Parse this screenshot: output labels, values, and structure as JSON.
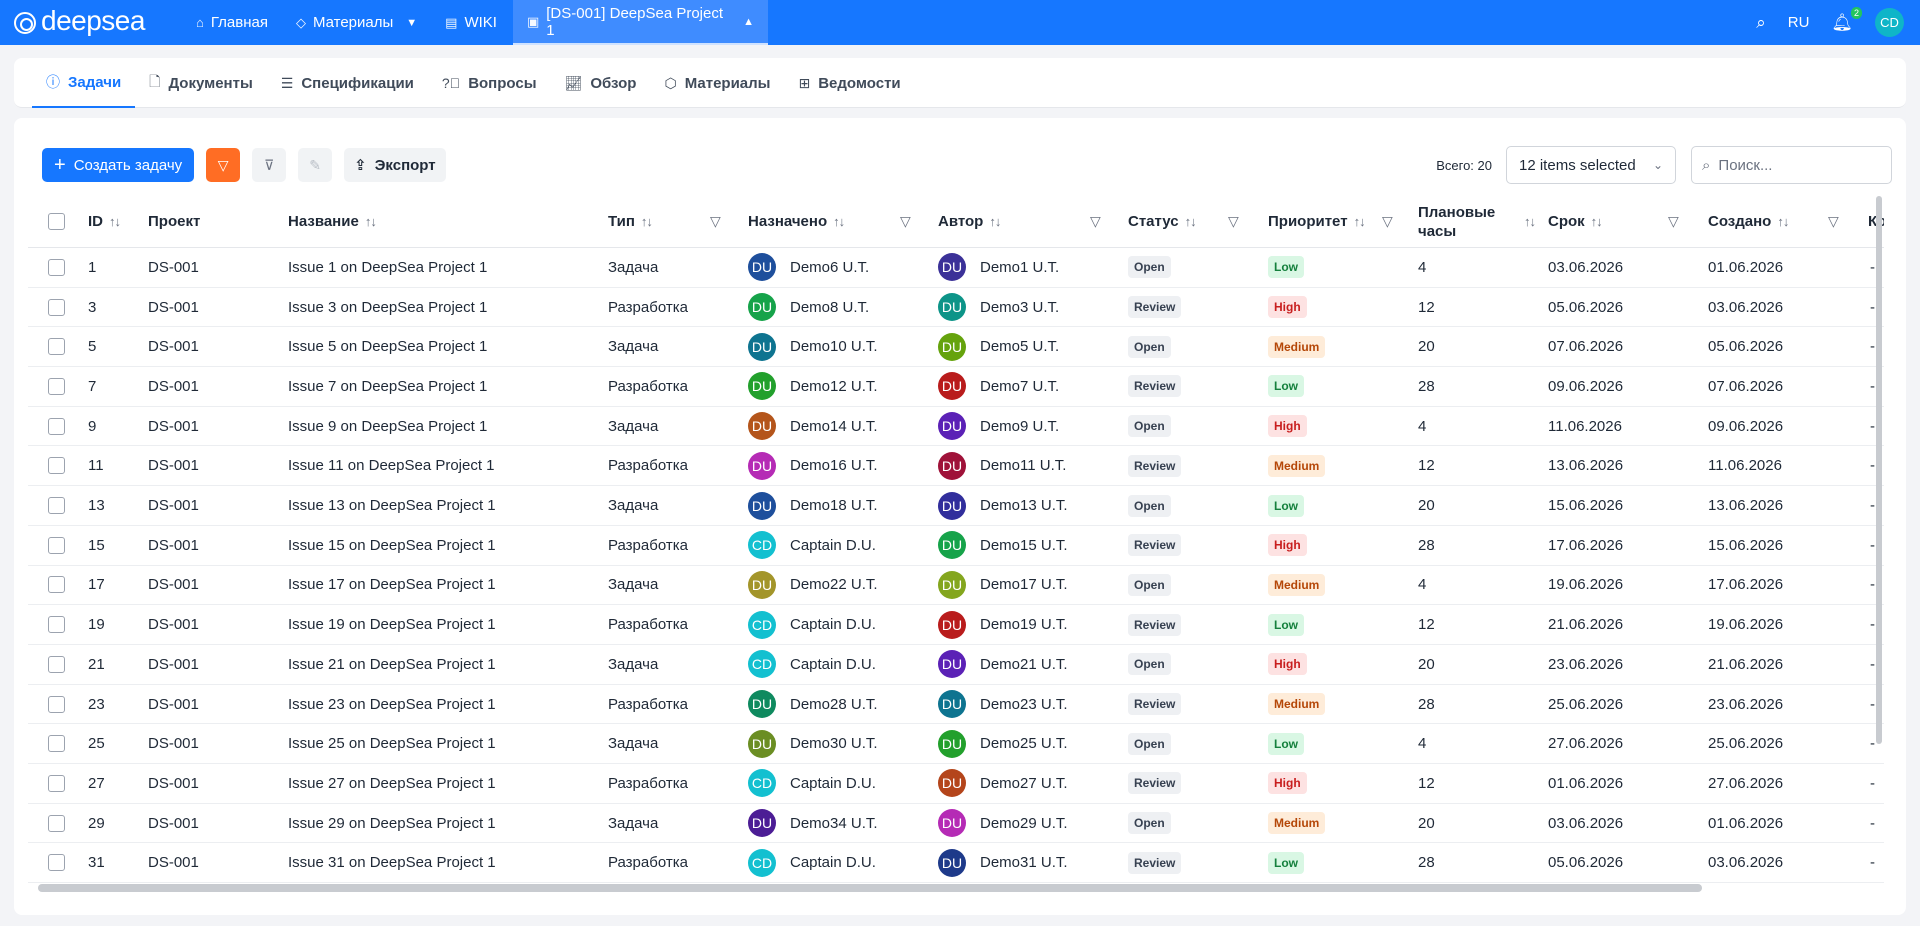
{
  "topbar": {
    "logo": "deepsea",
    "nav": [
      {
        "label": "Главная",
        "icon": "home-icon"
      },
      {
        "label": "Материалы",
        "icon": "tag-icon"
      },
      {
        "label": "WIKI",
        "icon": "book-icon"
      },
      {
        "label": "[DS-001] DeepSea Project 1",
        "icon": "project-icon"
      }
    ],
    "lang": "RU",
    "notifications": "2",
    "user_initials": "CD"
  },
  "tabs": [
    {
      "label": "Задачи",
      "icon": "info-icon",
      "active": true
    },
    {
      "label": "Документы",
      "icon": "document-icon"
    },
    {
      "label": "Спецификации",
      "icon": "list-icon"
    },
    {
      "label": "Вопросы",
      "icon": "question-icon"
    },
    {
      "label": "Обзор",
      "icon": "chart-icon"
    },
    {
      "label": "Материалы",
      "icon": "box-icon"
    },
    {
      "label": "Ведомости",
      "icon": "table-icon"
    }
  ],
  "toolbar": {
    "create_label": "Создать задачу",
    "export_label": "Экспорт",
    "total_label": "Всего: 20",
    "select_value": "12 items selected",
    "search_placeholder": "Поиск..."
  },
  "columns": {
    "id": "ID",
    "project": "Проект",
    "name": "Название",
    "type": "Тип",
    "assignee": "Назначено",
    "author": "Автор",
    "status": "Статус",
    "priority": "Приоритет",
    "hours_line1": "Плановые",
    "hours_line2": "часы",
    "due": "Срок",
    "created": "Создано",
    "extra": "Ко"
  },
  "rows": [
    {
      "id": "1",
      "project": "DS-001",
      "name": "Issue 1 on DeepSea Project 1",
      "type": "Задача",
      "assignee": "Demo6 U.T.",
      "assignee_init": "DU",
      "assignee_color": "#1e4f9c",
      "author": "Demo1 U.T.",
      "author_init": "DU",
      "author_color": "#3b3198",
      "status": "Open",
      "priority": "Low",
      "hours": "4",
      "due": "03.06.2026",
      "created": "01.06.2026",
      "extra": "-"
    },
    {
      "id": "3",
      "project": "DS-001",
      "name": "Issue 3 on DeepSea Project 1",
      "type": "Разработка",
      "assignee": "Demo8 U.T.",
      "assignee_init": "DU",
      "assignee_color": "#16a34a",
      "author": "Demo3 U.T.",
      "author_init": "DU",
      "author_color": "#0d9488",
      "status": "Review",
      "priority": "High",
      "hours": "12",
      "due": "05.06.2026",
      "created": "03.06.2026",
      "extra": "-"
    },
    {
      "id": "5",
      "project": "DS-001",
      "name": "Issue 5 on DeepSea Project 1",
      "type": "Задача",
      "assignee": "Demo10 U.T.",
      "assignee_init": "DU",
      "assignee_color": "#0e7490",
      "author": "Demo5 U.T.",
      "author_init": "DU",
      "author_color": "#65a30d",
      "status": "Open",
      "priority": "Medium",
      "hours": "20",
      "due": "07.06.2026",
      "created": "05.06.2026",
      "extra": "-"
    },
    {
      "id": "7",
      "project": "DS-001",
      "name": "Issue 7 on DeepSea Project 1",
      "type": "Разработка",
      "assignee": "Demo12 U.T.",
      "assignee_init": "DU",
      "assignee_color": "#22a02c",
      "author": "Demo7 U.T.",
      "author_init": "DU",
      "author_color": "#b91c1c",
      "status": "Review",
      "priority": "Low",
      "hours": "28",
      "due": "09.06.2026",
      "created": "07.06.2026",
      "extra": "-"
    },
    {
      "id": "9",
      "project": "DS-001",
      "name": "Issue 9 on DeepSea Project 1",
      "type": "Задача",
      "assignee": "Demo14 U.T.",
      "assignee_init": "DU",
      "assignee_color": "#b4551b",
      "author": "Demo9 U.T.",
      "author_init": "DU",
      "author_color": "#5b21b6",
      "status": "Open",
      "priority": "High",
      "hours": "4",
      "due": "11.06.2026",
      "created": "09.06.2026",
      "extra": "-"
    },
    {
      "id": "11",
      "project": "DS-001",
      "name": "Issue 11 on DeepSea Project 1",
      "type": "Разработка",
      "assignee": "Demo16 U.T.",
      "assignee_init": "DU",
      "assignee_color": "#b52bb5",
      "author": "Demo11 U.T.",
      "author_init": "DU",
      "author_color": "#9f1239",
      "status": "Review",
      "priority": "Medium",
      "hours": "12",
      "due": "13.06.2026",
      "created": "11.06.2026",
      "extra": "-"
    },
    {
      "id": "13",
      "project": "DS-001",
      "name": "Issue 13 on DeepSea Project 1",
      "type": "Задача",
      "assignee": "Demo18 U.T.",
      "assignee_init": "DU",
      "assignee_color": "#1e4f9c",
      "author": "Demo13 U.T.",
      "author_init": "DU",
      "author_color": "#312e9c",
      "status": "Open",
      "priority": "Low",
      "hours": "20",
      "due": "15.06.2026",
      "created": "13.06.2026",
      "extra": "-"
    },
    {
      "id": "15",
      "project": "DS-001",
      "name": "Issue 15 on DeepSea Project 1",
      "type": "Разработка",
      "assignee": "Captain D.U.",
      "assignee_init": "CD",
      "assignee_color": "#13c0d0",
      "author": "Demo15 U.T.",
      "author_init": "DU",
      "author_color": "#16a34a",
      "status": "Review",
      "priority": "High",
      "hours": "28",
      "due": "17.06.2026",
      "created": "15.06.2026",
      "extra": "-"
    },
    {
      "id": "17",
      "project": "DS-001",
      "name": "Issue 17 on DeepSea Project 1",
      "type": "Задача",
      "assignee": "Demo22 U.T.",
      "assignee_init": "DU",
      "assignee_color": "#a3952a",
      "author": "Demo17 U.T.",
      "author_init": "DU",
      "author_color": "#84a61e",
      "status": "Open",
      "priority": "Medium",
      "hours": "4",
      "due": "19.06.2026",
      "created": "17.06.2026",
      "extra": "-"
    },
    {
      "id": "19",
      "project": "DS-001",
      "name": "Issue 19 on DeepSea Project 1",
      "type": "Разработка",
      "assignee": "Captain D.U.",
      "assignee_init": "CD",
      "assignee_color": "#13c0d0",
      "author": "Demo19 U.T.",
      "author_init": "DU",
      "author_color": "#b91c1c",
      "status": "Review",
      "priority": "Low",
      "hours": "12",
      "due": "21.06.2026",
      "created": "19.06.2026",
      "extra": "-"
    },
    {
      "id": "21",
      "project": "DS-001",
      "name": "Issue 21 on DeepSea Project 1",
      "type": "Задача",
      "assignee": "Captain D.U.",
      "assignee_init": "CD",
      "assignee_color": "#13c0d0",
      "author": "Demo21 U.T.",
      "author_init": "DU",
      "author_color": "#5b21b6",
      "status": "Open",
      "priority": "High",
      "hours": "20",
      "due": "23.06.2026",
      "created": "21.06.2026",
      "extra": "-"
    },
    {
      "id": "23",
      "project": "DS-001",
      "name": "Issue 23 on DeepSea Project 1",
      "type": "Разработка",
      "assignee": "Demo28 U.T.",
      "assignee_init": "DU",
      "assignee_color": "#0f8a5f",
      "author": "Demo23 U.T.",
      "author_init": "DU",
      "author_color": "#0e7490",
      "status": "Review",
      "priority": "Medium",
      "hours": "28",
      "due": "25.06.2026",
      "created": "23.06.2026",
      "extra": "-"
    },
    {
      "id": "25",
      "project": "DS-001",
      "name": "Issue 25 on DeepSea Project 1",
      "type": "Задача",
      "assignee": "Demo30 U.T.",
      "assignee_init": "DU",
      "assignee_color": "#6b8e23",
      "author": "Demo25 U.T.",
      "author_init": "DU",
      "author_color": "#22a02c",
      "status": "Open",
      "priority": "Low",
      "hours": "4",
      "due": "27.06.2026",
      "created": "25.06.2026",
      "extra": "-"
    },
    {
      "id": "27",
      "project": "DS-001",
      "name": "Issue 27 on DeepSea Project 1",
      "type": "Разработка",
      "assignee": "Captain D.U.",
      "assignee_init": "CD",
      "assignee_color": "#13c0d0",
      "author": "Demo27 U.T.",
      "author_init": "DU",
      "author_color": "#b4451b",
      "status": "Review",
      "priority": "High",
      "hours": "12",
      "due": "01.06.2026",
      "created": "27.06.2026",
      "extra": "-"
    },
    {
      "id": "29",
      "project": "DS-001",
      "name": "Issue 29 on DeepSea Project 1",
      "type": "Задача",
      "assignee": "Demo34 U.T.",
      "assignee_init": "DU",
      "assignee_color": "#4c1d95",
      "author": "Demo29 U.T.",
      "author_init": "DU",
      "author_color": "#b52bb5",
      "status": "Open",
      "priority": "Medium",
      "hours": "20",
      "due": "03.06.2026",
      "created": "01.06.2026",
      "extra": "-"
    },
    {
      "id": "31",
      "project": "DS-001",
      "name": "Issue 31 on DeepSea Project 1",
      "type": "Разработка",
      "assignee": "Captain D.U.",
      "assignee_init": "CD",
      "assignee_color": "#13c0d0",
      "author": "Demo31 U.T.",
      "author_init": "DU",
      "author_color": "#1e3a8a",
      "status": "Review",
      "priority": "Low",
      "hours": "28",
      "due": "05.06.2026",
      "created": "03.06.2026",
      "extra": "-"
    }
  ]
}
